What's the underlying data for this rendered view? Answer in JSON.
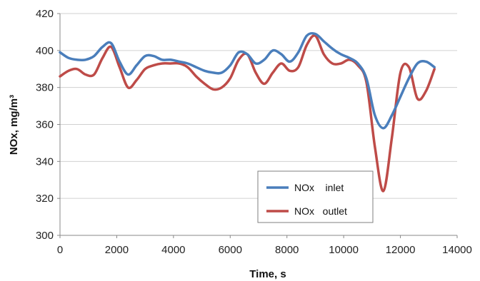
{
  "chart_data": {
    "type": "line",
    "xlabel": "Time, s",
    "ylabel": "NOx, mg/m³",
    "xlim": [
      0,
      14000
    ],
    "ylim": [
      300,
      420
    ],
    "xticks": [
      0,
      2000,
      4000,
      6000,
      8000,
      10000,
      12000,
      14000
    ],
    "yticks": [
      300,
      320,
      340,
      360,
      380,
      400,
      420
    ],
    "grid": "horizontal",
    "legend_position": "bottom-right",
    "series": [
      {
        "name": "NOx    inlet",
        "color": "#4a7ebb",
        "x": [
          0,
          300,
          600,
          900,
          1200,
          1500,
          1800,
          2100,
          2400,
          2700,
          3000,
          3300,
          3600,
          3900,
          4200,
          4500,
          4800,
          5100,
          5400,
          5700,
          6000,
          6300,
          6600,
          6900,
          7200,
          7500,
          7800,
          8100,
          8400,
          8700,
          9000,
          9300,
          9600,
          9900,
          10200,
          10500,
          10800,
          11100,
          11400,
          11700,
          12000,
          12300,
          12600,
          12900,
          13200
        ],
        "values": [
          399,
          396,
          395,
          395,
          397,
          402,
          404,
          394,
          387,
          392,
          397,
          397,
          395,
          395,
          394,
          393,
          391,
          389,
          388,
          388,
          392,
          399,
          398,
          393,
          395,
          400,
          398,
          394,
          399,
          408,
          409,
          405,
          401,
          398,
          396,
          393,
          385,
          365,
          358,
          365,
          375,
          385,
          393,
          394,
          391
        ]
      },
      {
        "name": "NOx   outlet",
        "color": "#be4b48",
        "x": [
          0,
          300,
          600,
          900,
          1200,
          1500,
          1800,
          2100,
          2400,
          2700,
          3000,
          3300,
          3600,
          3900,
          4200,
          4500,
          4800,
          5100,
          5400,
          5700,
          6000,
          6300,
          6600,
          6900,
          7200,
          7500,
          7800,
          8100,
          8400,
          8700,
          9000,
          9300,
          9600,
          9900,
          10200,
          10500,
          10800,
          11100,
          11400,
          11700,
          12000,
          12300,
          12600,
          12900,
          13200
        ],
        "values": [
          386,
          389,
          390,
          387,
          387,
          396,
          402,
          391,
          380,
          384,
          390,
          392,
          393,
          393,
          393,
          391,
          386,
          382,
          379,
          380,
          385,
          395,
          398,
          388,
          382,
          388,
          393,
          389,
          391,
          403,
          408,
          398,
          393,
          393,
          395,
          392,
          383,
          348,
          324,
          353,
          388,
          391,
          374,
          378,
          390
        ]
      }
    ]
  }
}
